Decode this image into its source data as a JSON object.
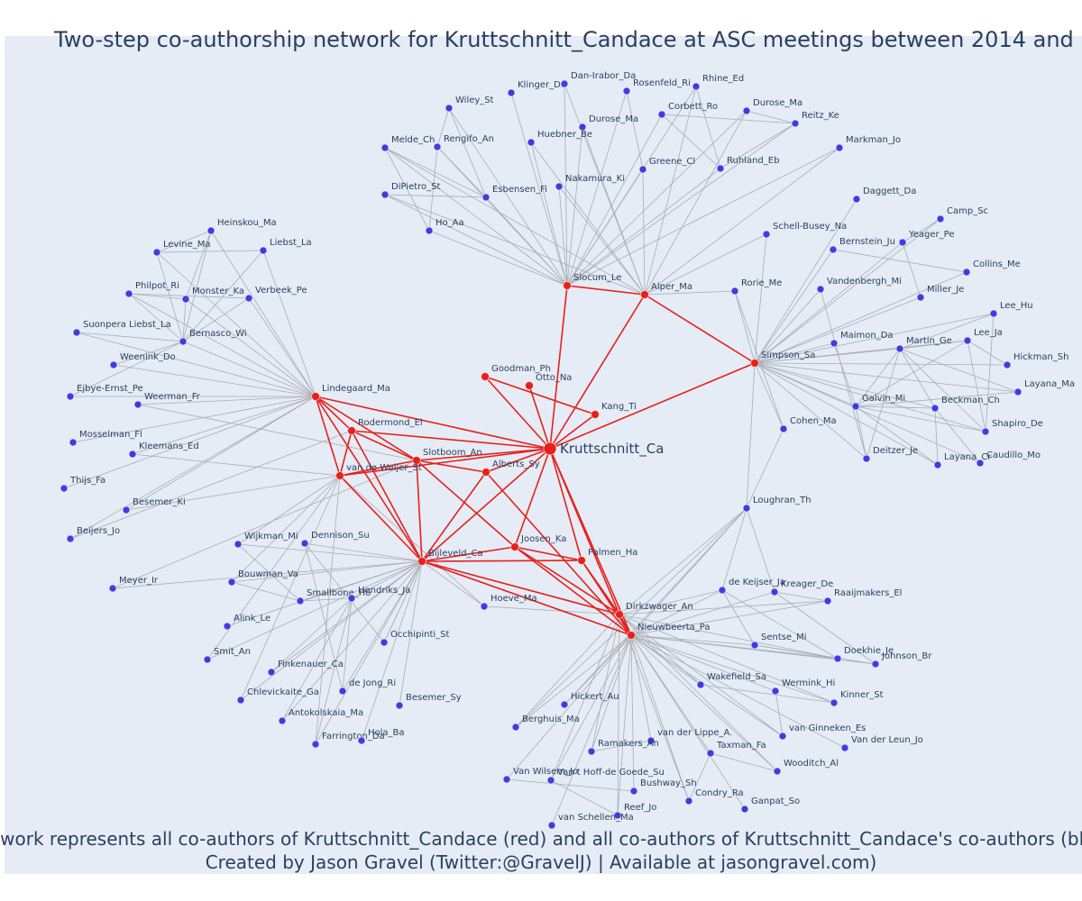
{
  "header": {
    "title": "Two-step co-authorship network for Kruttschnitt_Candace at ASC meetings between 2014 and 201"
  },
  "nodes": [
    {
      "label": "Kruttschnitt_Ca",
      "color": "#e8201a"
    },
    {
      "label": "Slocum_Le",
      "color": "#e8201a"
    },
    {
      "label": "Alper_Ma",
      "color": "#e8201a"
    },
    {
      "label": "Simpson_Sa",
      "color": "#e8201a"
    },
    {
      "label": "Goodman_Ph",
      "color": "#e8201a"
    },
    {
      "label": "Otto_Na",
      "color": "#e8201a"
    },
    {
      "label": "Kang_Ti",
      "color": "#e8201a"
    },
    {
      "label": "Lindegaard_Ma",
      "color": "#e8201a"
    },
    {
      "label": "Rodermond_El",
      "color": "#e8201a"
    },
    {
      "label": "Slotboom_An",
      "color": "#e8201a"
    },
    {
      "label": "van de Weijer_St",
      "color": "#e8201a"
    },
    {
      "label": "Alberts_Sy",
      "color": "#e8201a"
    },
    {
      "label": "Bijleveld_Ca",
      "color": "#e8201a"
    },
    {
      "label": "Joosen_Ka",
      "color": "#e8201a"
    },
    {
      "label": "Palmen_Ha",
      "color": "#e8201a"
    },
    {
      "label": "Dirkzwager_An",
      "color": "#e8201a"
    },
    {
      "label": "Nieuwbeerta_Pa",
      "color": "#e8201a"
    },
    {
      "label": "Loughran_Th",
      "color": "#3d3de0"
    },
    {
      "label": "Klinger_Da",
      "color": "#3d3de0"
    },
    {
      "label": "Dan-Irabor_Da",
      "color": "#3d3de0"
    },
    {
      "label": "Rosenfeld_Ri",
      "color": "#3d3de0"
    },
    {
      "label": "Rhine_Ed",
      "color": "#3d3de0"
    },
    {
      "label": "Wiley_St",
      "color": "#3d3de0"
    },
    {
      "label": "Durose_Ma",
      "color": "#3d3de0"
    },
    {
      "label": "Corbett_Ro",
      "color": "#3d3de0"
    },
    {
      "label": "Durose_Ma",
      "color": "#3d3de0"
    },
    {
      "label": "Reitz_Ke",
      "color": "#3d3de0"
    },
    {
      "label": "Melde_Ch",
      "color": "#3d3de0"
    },
    {
      "label": "Rengifo_An",
      "color": "#3d3de0"
    },
    {
      "label": "Huebner_Be",
      "color": "#3d3de0"
    },
    {
      "label": "Markman_Jo",
      "color": "#3d3de0"
    },
    {
      "label": "Greene_Cl",
      "color": "#3d3de0"
    },
    {
      "label": "Ruhland_Eb",
      "color": "#3d3de0"
    },
    {
      "label": "DiPietro_St",
      "color": "#3d3de0"
    },
    {
      "label": "Esbensen_Fi",
      "color": "#3d3de0"
    },
    {
      "label": "Nakamura_Ki",
      "color": "#3d3de0"
    },
    {
      "label": "Ho_Aa",
      "color": "#3d3de0"
    },
    {
      "label": "Daggett_Da",
      "color": "#3d3de0"
    },
    {
      "label": "Camp_Sc",
      "color": "#3d3de0"
    },
    {
      "label": "Schell-Busey_Na",
      "color": "#3d3de0"
    },
    {
      "label": "Bernstein_Ju",
      "color": "#3d3de0"
    },
    {
      "label": "Yeager_Pe",
      "color": "#3d3de0"
    },
    {
      "label": "Collins_Me",
      "color": "#3d3de0"
    },
    {
      "label": "Rorie_Me",
      "color": "#3d3de0"
    },
    {
      "label": "Vandenbergh_Mi",
      "color": "#3d3de0"
    },
    {
      "label": "Miller_Je",
      "color": "#3d3de0"
    },
    {
      "label": "Lee_Hu",
      "color": "#3d3de0"
    },
    {
      "label": "Lee_Ja",
      "color": "#3d3de0"
    },
    {
      "label": "Maimon_Da",
      "color": "#3d3de0"
    },
    {
      "label": "Martin_Ge",
      "color": "#3d3de0"
    },
    {
      "label": "Hickman_Sh",
      "color": "#3d3de0"
    },
    {
      "label": "Layana_Ma",
      "color": "#3d3de0"
    },
    {
      "label": "Galvin_Mi",
      "color": "#3d3de0"
    },
    {
      "label": "Beckman_Ch",
      "color": "#3d3de0"
    },
    {
      "label": "Cohen_Ma",
      "color": "#3d3de0"
    },
    {
      "label": "Shapiro_De",
      "color": "#3d3de0"
    },
    {
      "label": "Deitzer_Je",
      "color": "#3d3de0"
    },
    {
      "label": "Layana_Cr",
      "color": "#3d3de0"
    },
    {
      "label": "Caudillo_Mo",
      "color": "#3d3de0"
    },
    {
      "label": "Heinskou_Ma",
      "color": "#3d3de0"
    },
    {
      "label": "Levine_Ma",
      "color": "#3d3de0"
    },
    {
      "label": "Liebst_La",
      "color": "#3d3de0"
    },
    {
      "label": "Philpot_Ri",
      "color": "#3d3de0"
    },
    {
      "label": "Monster_Ka",
      "color": "#3d3de0"
    },
    {
      "label": "Verbeek_Pe",
      "color": "#3d3de0"
    },
    {
      "label": "Suonpera Liebst_La",
      "color": "#3d3de0"
    },
    {
      "label": "Bernasco_Wi",
      "color": "#3d3de0"
    },
    {
      "label": "Weenink_Do",
      "color": "#3d3de0"
    },
    {
      "label": "Ejbye-Ernst_Pe",
      "color": "#3d3de0"
    },
    {
      "label": "Weerman_Fr",
      "color": "#3d3de0"
    },
    {
      "label": "Mosselman_Fl",
      "color": "#3d3de0"
    },
    {
      "label": "Kleemans_Ed",
      "color": "#3d3de0"
    },
    {
      "label": "Thijs_Fa",
      "color": "#3d3de0"
    },
    {
      "label": "Besemer_Ki",
      "color": "#3d3de0"
    },
    {
      "label": "Beijers_Jo",
      "color": "#3d3de0"
    },
    {
      "label": "Wijkman_Mi",
      "color": "#3d3de0"
    },
    {
      "label": "Dennison_Su",
      "color": "#3d3de0"
    },
    {
      "label": "Meyer_Ir",
      "color": "#3d3de0"
    },
    {
      "label": "Bouwman_Va",
      "color": "#3d3de0"
    },
    {
      "label": "Smallbone_Ho",
      "color": "#3d3de0"
    },
    {
      "label": "Hendriks_Ja",
      "color": "#3d3de0"
    },
    {
      "label": "Hoeve_Ma",
      "color": "#3d3de0"
    },
    {
      "label": "Alink_Le",
      "color": "#3d3de0"
    },
    {
      "label": "Occhipinti_St",
      "color": "#3d3de0"
    },
    {
      "label": "Smit_An",
      "color": "#3d3de0"
    },
    {
      "label": "Finkenauer_Ca",
      "color": "#3d3de0"
    },
    {
      "label": "de Jong_Ri",
      "color": "#3d3de0"
    },
    {
      "label": "Chlevickaite_Ga",
      "color": "#3d3de0"
    },
    {
      "label": "Besemer_Sy",
      "color": "#3d3de0"
    },
    {
      "label": "Antokolskaia_Ma",
      "color": "#3d3de0"
    },
    {
      "label": "Farrington_Da",
      "color": "#3d3de0"
    },
    {
      "label": "Hola_Ba",
      "color": "#3d3de0"
    },
    {
      "label": "de Keijser_Ja",
      "color": "#3d3de0"
    },
    {
      "label": "Kreager_De",
      "color": "#3d3de0"
    },
    {
      "label": "Raaijmakers_El",
      "color": "#3d3de0"
    },
    {
      "label": "Sentse_Mi",
      "color": "#3d3de0"
    },
    {
      "label": "Doekhie_Je",
      "color": "#3d3de0"
    },
    {
      "label": "Johnson_Br",
      "color": "#3d3de0"
    },
    {
      "label": "Wakefield_Sa",
      "color": "#3d3de0"
    },
    {
      "label": "Wermink_Hi",
      "color": "#3d3de0"
    },
    {
      "label": "Kinner_St",
      "color": "#3d3de0"
    },
    {
      "label": "Hickert_Au",
      "color": "#3d3de0"
    },
    {
      "label": "Berghuis_Ma",
      "color": "#3d3de0"
    },
    {
      "label": "van der Lippe_A.",
      "color": "#3d3de0"
    },
    {
      "label": "van Ginneken_Es",
      "color": "#3d3de0"
    },
    {
      "label": "Van der Leun_Jo",
      "color": "#3d3de0"
    },
    {
      "label": "Ramakers_An",
      "color": "#3d3de0"
    },
    {
      "label": "Taxman_Fa",
      "color": "#3d3de0"
    },
    {
      "label": "Wooditch_Al",
      "color": "#3d3de0"
    },
    {
      "label": "Van Wilsem_Jo",
      "color": "#3d3de0"
    },
    {
      "label": "Van t Hoff-de Goede_Su",
      "color": "#3d3de0"
    },
    {
      "label": "Bushway_Sh",
      "color": "#3d3de0"
    },
    {
      "label": "Condry_Ra",
      "color": "#3d3de0"
    },
    {
      "label": "Ganpat_So",
      "color": "#3d3de0"
    },
    {
      "label": "Reef_Jo",
      "color": "#3d3de0"
    },
    {
      "label": "van Schellen_Ma",
      "color": "#3d3de0"
    }
  ],
  "footer": {
    "line1": "Network represents all co-authors of Kruttschnitt_Candace (red) and all co-authors of Kruttschnitt_Candace's co-authors (blue)",
    "line2": "Created by Jason Gravel (Twitter:@GravelJ) | Available at jasongravel.com)"
  }
}
